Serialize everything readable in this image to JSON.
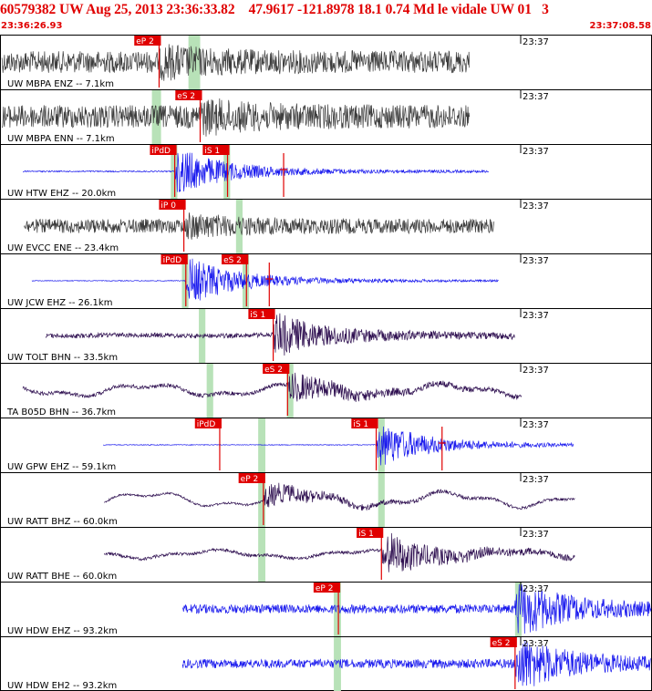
{
  "header": {
    "title": "60579382 UW Aug 25, 2013 23:36:33.82    47.9617 -121.8978 18.1 0.74 Md le vidale UW 01   3",
    "start_time": "23:36:26.93",
    "end_time": "23:37:08.58"
  },
  "colors": {
    "header_text": "#e00000",
    "pick_box": "#e00000",
    "pick_text": "#ffffff",
    "window_band": "#b8e2b8",
    "trace_gray": "#3c3c3c",
    "trace_blue": "#1a1aee",
    "trace_purple": "#2e0f50",
    "frame": "#000000"
  },
  "chart_data": {
    "type": "seismogram",
    "time_start": "23:36:26.93",
    "time_end": "23:37:08.58",
    "minute_marker": "23:37",
    "traces": [
      {
        "label": "UW MBPA ENZ -- 7.1km",
        "color": "gray",
        "picks": [
          {
            "label": "eP 2",
            "t": 0.244
          }
        ],
        "window": [
          0.289,
          0.307
        ],
        "data_span": [
          0.003,
          0.72
        ],
        "arrival": 0.244,
        "noise": 0.85,
        "env": 0.35,
        "osc": 0.0
      },
      {
        "label": "UW MBPA ENN -- 7.1km",
        "color": "gray",
        "picks": [
          {
            "label": "eS 2",
            "t": 0.307
          }
        ],
        "window": [
          0.233,
          0.247
        ],
        "data_span": [
          0.003,
          0.72
        ],
        "arrival": 0.307,
        "noise": 0.9,
        "env": 0.35,
        "osc": 0.0
      },
      {
        "label": "UW HTW EHZ -- 20.0km",
        "color": "blue",
        "picks": [
          {
            "label": "iPdD",
            "t": 0.268
          },
          {
            "label": "iS 1",
            "t": 0.349
          },
          {
            "label": "",
            "t": 0.435
          }
        ],
        "window": [
          0.262,
          0.272,
          0.343,
          0.353
        ],
        "data_span": [
          0.035,
          0.75
        ],
        "arrival": 0.268,
        "noise": 0.05,
        "env": 0.9,
        "osc": 0.0
      },
      {
        "label": "UW EVCC ENE -- 23.4km",
        "color": "gray",
        "picks": [
          {
            "label": "iP 0",
            "t": 0.282
          }
        ],
        "window": [
          0.362,
          0.372
        ],
        "data_span": [
          0.037,
          0.758
        ],
        "arrival": 0.282,
        "noise": 0.55,
        "env": 0.3,
        "osc": 0.0
      },
      {
        "label": "UW JCW EHZ -- 26.1km",
        "color": "blue",
        "picks": [
          {
            "label": "iPdD",
            "t": 0.285
          },
          {
            "label": "eS 2",
            "t": 0.378
          },
          {
            "label": "",
            "t": 0.413
          }
        ],
        "window": [
          0.279,
          0.289,
          0.372,
          0.382
        ],
        "data_span": [
          0.049,
          0.765
        ],
        "arrival": 0.285,
        "noise": 0.03,
        "env": 0.9,
        "osc": 0.0
      },
      {
        "label": "UW TOLT BHN -- 33.5km",
        "color": "purple",
        "picks": [
          {
            "label": "iS 1",
            "t": 0.419
          }
        ],
        "window": [
          0.305,
          0.315
        ],
        "data_span": [
          0.07,
          0.79
        ],
        "arrival": 0.419,
        "noise": 0.18,
        "env": 0.8,
        "osc": 0.05
      },
      {
        "label": "TA B05D BHN -- 36.7km",
        "color": "purple",
        "picks": [
          {
            "label": "eS 2",
            "t": 0.441
          }
        ],
        "window": [
          0.317,
          0.327,
          0.44,
          0.45
        ],
        "data_span": [
          0.035,
          0.8
        ],
        "arrival": 0.441,
        "noise": 0.15,
        "env": 0.55,
        "osc": 0.45
      },
      {
        "label": "UW GPW EHZ -- 59.1km",
        "color": "blue",
        "picks": [
          {
            "label": "iPdD",
            "t": 0.337
          },
          {
            "label": "iS 1",
            "t": 0.577
          },
          {
            "label": "",
            "t": 0.678
          }
        ],
        "window": [
          0.396,
          0.407,
          0.58,
          0.59
        ],
        "data_span": [
          0.158,
          0.88
        ],
        "arrival": 0.577,
        "noise": 0.03,
        "env": 0.85,
        "osc": 0.0
      },
      {
        "label": "UW RATT BHZ -- 60.0km",
        "color": "purple",
        "picks": [
          {
            "label": "eP 2",
            "t": 0.404
          }
        ],
        "window": [
          0.396,
          0.407,
          0.58,
          0.59
        ],
        "data_span": [
          0.16,
          0.882
        ],
        "arrival": 0.404,
        "noise": 0.08,
        "env": 0.45,
        "osc": 0.55
      },
      {
        "label": "UW RATT BHE -- 60.0km",
        "color": "purple",
        "picks": [
          {
            "label": "iS 1",
            "t": 0.585
          }
        ],
        "window": [
          0.396,
          0.407
        ],
        "data_span": [
          0.16,
          0.882
        ],
        "arrival": 0.585,
        "noise": 0.12,
        "env": 0.8,
        "osc": 0.3
      },
      {
        "label": "UW HDW EHZ -- 93.2km",
        "color": "blue",
        "picks": [
          {
            "label": "eP 2",
            "t": 0.519
          }
        ],
        "window": [
          0.512,
          0.523,
          0.79,
          0.8
        ],
        "data_span": [
          0.28,
          0.999
        ],
        "arrival": 0.79,
        "noise": 0.35,
        "env": 0.95,
        "osc": 0.0
      },
      {
        "label": "UW HDW EH2 -- 93.2km",
        "color": "blue",
        "picks": [
          {
            "label": "eS 2",
            "t": 0.79
          }
        ],
        "window": [
          0.512,
          0.523
        ],
        "data_span": [
          0.28,
          0.999
        ],
        "arrival": 0.79,
        "noise": 0.35,
        "env": 0.95,
        "osc": 0.0
      }
    ]
  }
}
